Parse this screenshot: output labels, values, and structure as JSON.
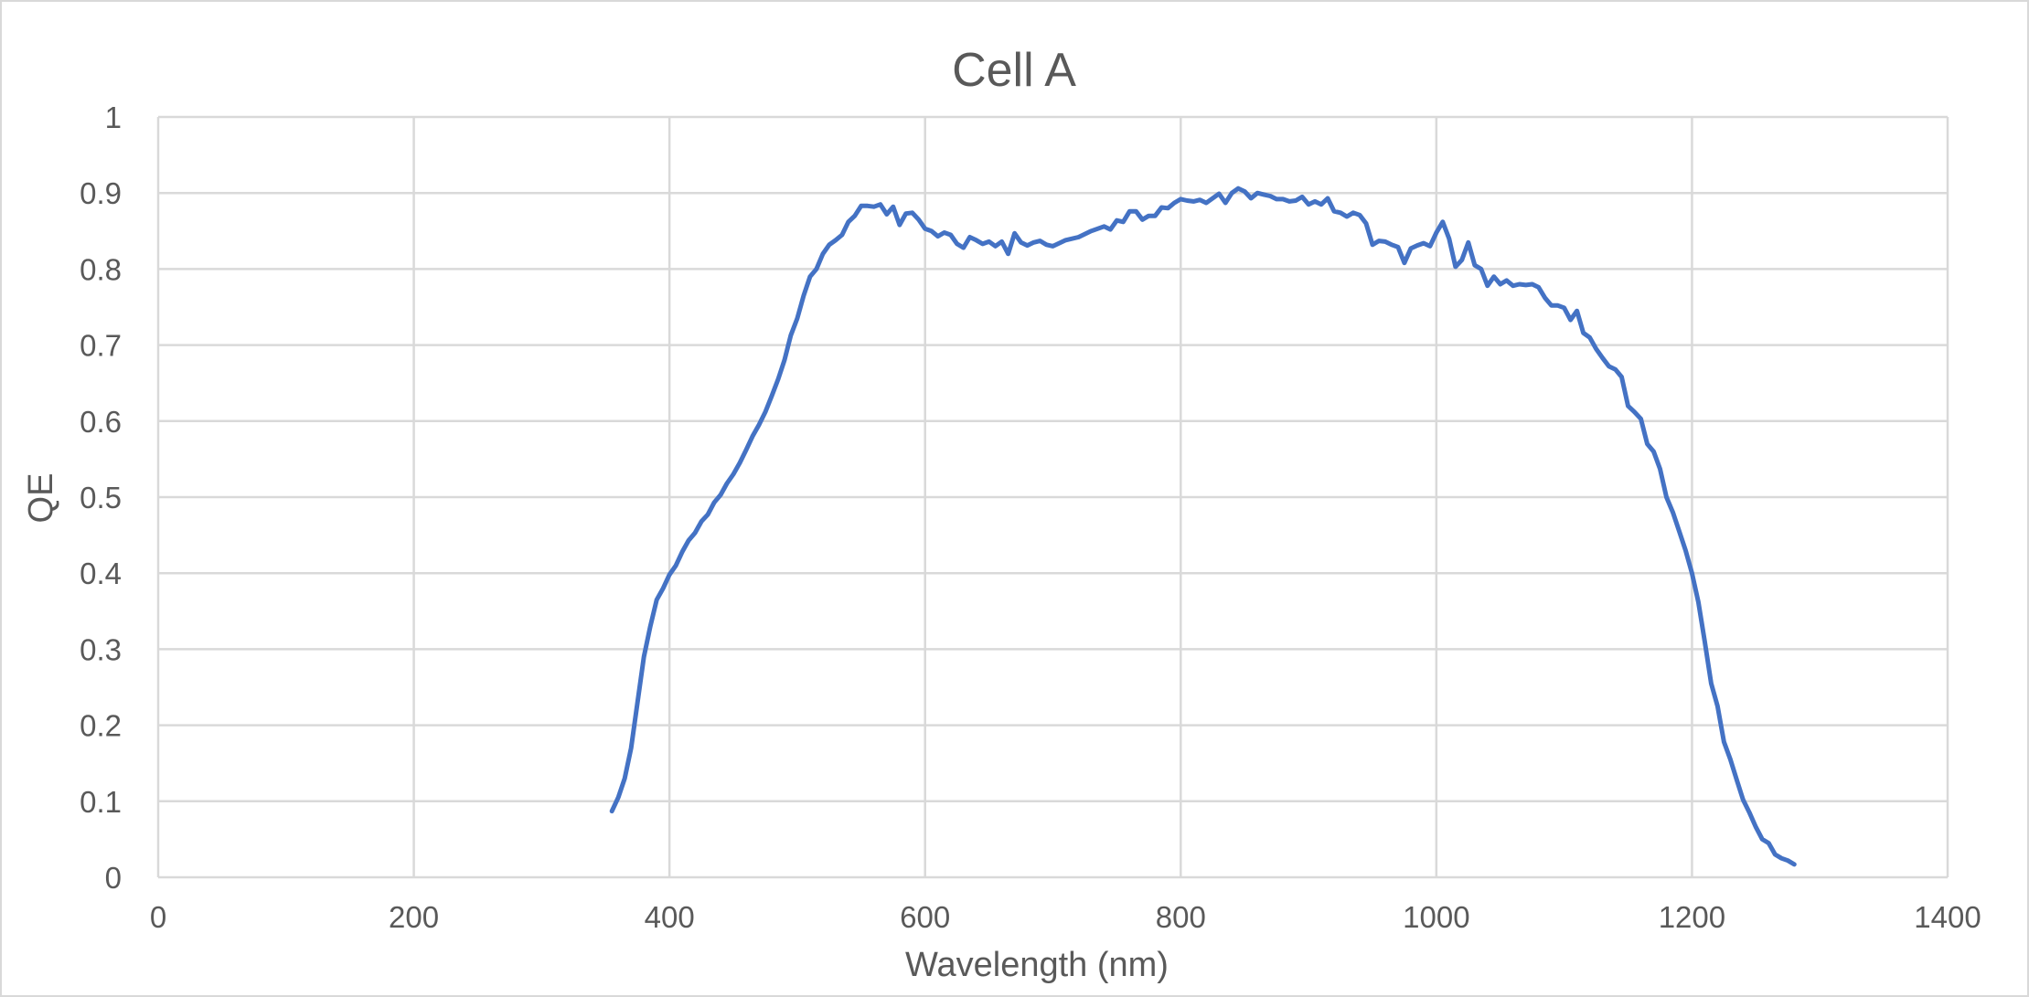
{
  "chart_data": {
    "type": "line",
    "title": "Cell A",
    "xlabel": "Wavelength (nm)",
    "ylabel": "QE",
    "xlim": [
      0,
      1400
    ],
    "ylim": [
      0,
      1
    ],
    "xticks": [
      0,
      200,
      400,
      600,
      800,
      1000,
      1200,
      1400
    ],
    "yticks": [
      0,
      0.1,
      0.2,
      0.3,
      0.4,
      0.5,
      0.6,
      0.7,
      0.8,
      0.9,
      1
    ],
    "xtick_labels": [
      "0",
      "200",
      "400",
      "600",
      "800",
      "1000",
      "1200",
      "1400"
    ],
    "ytick_labels": [
      "0",
      "0.1",
      "0.2",
      "0.3",
      "0.4",
      "0.5",
      "0.6",
      "0.7",
      "0.8",
      "0.9",
      "1"
    ],
    "grid": true,
    "legend": "none",
    "series": [
      {
        "name": "Cell A",
        "color": "#4472c4",
        "x": [
          355,
          360,
          365,
          370,
          375,
          380,
          385,
          390,
          395,
          400,
          405,
          410,
          415,
          420,
          425,
          430,
          435,
          440,
          445,
          450,
          455,
          460,
          465,
          470,
          475,
          480,
          485,
          490,
          495,
          500,
          505,
          510,
          515,
          520,
          525,
          530,
          535,
          540,
          545,
          550,
          555,
          560,
          565,
          570,
          575,
          580,
          585,
          590,
          595,
          600,
          605,
          610,
          615,
          620,
          625,
          630,
          635,
          640,
          645,
          650,
          655,
          660,
          665,
          670,
          675,
          680,
          685,
          690,
          695,
          700,
          710,
          720,
          730,
          740,
          745,
          750,
          755,
          760,
          765,
          770,
          775,
          780,
          785,
          790,
          795,
          800,
          805,
          810,
          815,
          820,
          825,
          830,
          835,
          840,
          845,
          850,
          855,
          860,
          865,
          870,
          875,
          880,
          885,
          890,
          895,
          900,
          905,
          910,
          915,
          920,
          925,
          930,
          935,
          940,
          945,
          950,
          955,
          960,
          965,
          970,
          975,
          980,
          985,
          990,
          995,
          1000,
          1005,
          1010,
          1015,
          1020,
          1025,
          1030,
          1035,
          1040,
          1045,
          1050,
          1055,
          1060,
          1065,
          1070,
          1075,
          1080,
          1085,
          1090,
          1095,
          1100,
          1105,
          1110,
          1115,
          1120,
          1125,
          1130,
          1135,
          1140,
          1145,
          1150,
          1155,
          1160,
          1165,
          1170,
          1175,
          1180,
          1185,
          1190,
          1195,
          1200,
          1205,
          1210,
          1215,
          1220,
          1225,
          1230,
          1235,
          1240,
          1245,
          1250,
          1255,
          1260,
          1265,
          1270,
          1275,
          1280
        ],
        "y": [
          0.087,
          0.105,
          0.13,
          0.17,
          0.23,
          0.29,
          0.33,
          0.365,
          0.38,
          0.398,
          0.41,
          0.428,
          0.443,
          0.453,
          0.468,
          0.477,
          0.493,
          0.503,
          0.518,
          0.53,
          0.545,
          0.562,
          0.58,
          0.595,
          0.612,
          0.633,
          0.655,
          0.68,
          0.713,
          0.735,
          0.765,
          0.79,
          0.8,
          0.82,
          0.832,
          0.838,
          0.845,
          0.862,
          0.87,
          0.883,
          0.883,
          0.882,
          0.885,
          0.872,
          0.882,
          0.858,
          0.873,
          0.874,
          0.865,
          0.853,
          0.85,
          0.843,
          0.848,
          0.845,
          0.833,
          0.828,
          0.842,
          0.838,
          0.833,
          0.836,
          0.83,
          0.836,
          0.82,
          0.847,
          0.835,
          0.831,
          0.835,
          0.837,
          0.832,
          0.83,
          0.838,
          0.842,
          0.85,
          0.856,
          0.852,
          0.864,
          0.862,
          0.876,
          0.876,
          0.865,
          0.87,
          0.87,
          0.881,
          0.88,
          0.887,
          0.892,
          0.89,
          0.889,
          0.891,
          0.887,
          0.893,
          0.899,
          0.887,
          0.9,
          0.906,
          0.902,
          0.893,
          0.9,
          0.898,
          0.896,
          0.892,
          0.892,
          0.889,
          0.89,
          0.895,
          0.885,
          0.889,
          0.885,
          0.893,
          0.876,
          0.874,
          0.869,
          0.874,
          0.871,
          0.86,
          0.832,
          0.837,
          0.836,
          0.832,
          0.829,
          0.808,
          0.827,
          0.831,
          0.834,
          0.83,
          0.848,
          0.862,
          0.84,
          0.803,
          0.812,
          0.835,
          0.805,
          0.8,
          0.778,
          0.79,
          0.78,
          0.785,
          0.778,
          0.78,
          0.779,
          0.78,
          0.776,
          0.762,
          0.752,
          0.752,
          0.749,
          0.733,
          0.745,
          0.716,
          0.71,
          0.695,
          0.683,
          0.672,
          0.668,
          0.658,
          0.62,
          0.612,
          0.603,
          0.57,
          0.56,
          0.537,
          0.5,
          0.48,
          0.455,
          0.43,
          0.4,
          0.362,
          0.31,
          0.255,
          0.225,
          0.178,
          0.155,
          0.128,
          0.102,
          0.085,
          0.066,
          0.05,
          0.045,
          0.03,
          0.025,
          0.022,
          0.017
        ]
      }
    ]
  }
}
